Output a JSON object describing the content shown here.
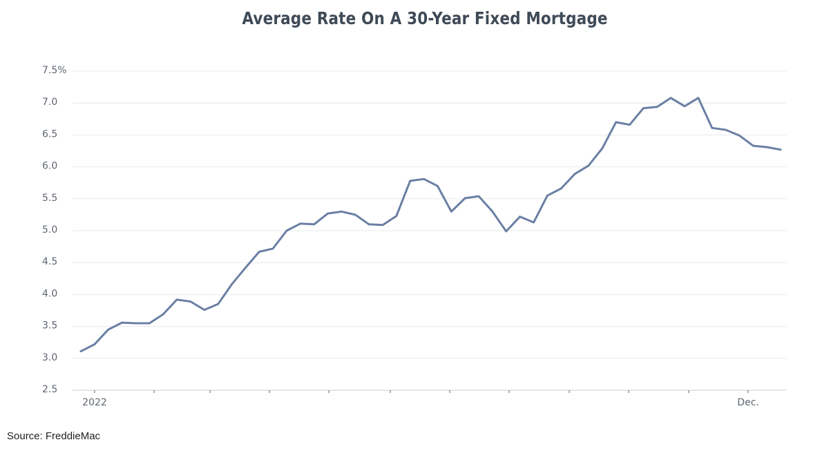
{
  "chart_data": {
    "type": "line",
    "title": "Average Rate On A 30-Year Fixed Mortgage",
    "source": "Source: FreddieMac",
    "ylim": [
      2.5,
      7.5
    ],
    "yticks": [
      {
        "value": 7.5,
        "label": "7.5%"
      },
      {
        "value": 7.0,
        "label": "7.0"
      },
      {
        "value": 6.5,
        "label": "6.5"
      },
      {
        "value": 6.0,
        "label": "6.0"
      },
      {
        "value": 5.5,
        "label": "5.5"
      },
      {
        "value": 5.0,
        "label": "5.0"
      },
      {
        "value": 4.5,
        "label": "4.5"
      },
      {
        "value": 4.0,
        "label": "4.0"
      },
      {
        "value": 3.5,
        "label": "3.5"
      },
      {
        "value": 3.0,
        "label": "3.0"
      },
      {
        "value": 2.5,
        "label": "2.5"
      }
    ],
    "x_labels": [
      {
        "index": 1,
        "label": "2022"
      },
      {
        "index": 49,
        "label": "Dec."
      }
    ],
    "grid": true,
    "line_color": "#6a7fa3",
    "series": [
      {
        "values": [
          3.11,
          3.22,
          3.45,
          3.56,
          3.55,
          3.55,
          3.69,
          3.92,
          3.89,
          3.76,
          3.85,
          4.16,
          4.42,
          4.67,
          4.72,
          5.0,
          5.11,
          5.1,
          5.27,
          5.3,
          5.25,
          5.1,
          5.09,
          5.23,
          5.78,
          5.81,
          5.7,
          5.3,
          5.51,
          5.54,
          5.3,
          4.99,
          5.22,
          5.13,
          5.55,
          5.66,
          5.89,
          6.02,
          6.29,
          6.7,
          6.66,
          6.92,
          6.94,
          7.08,
          6.95,
          7.08,
          6.61,
          6.58,
          6.49,
          6.33,
          6.31,
          6.27
        ]
      }
    ]
  }
}
